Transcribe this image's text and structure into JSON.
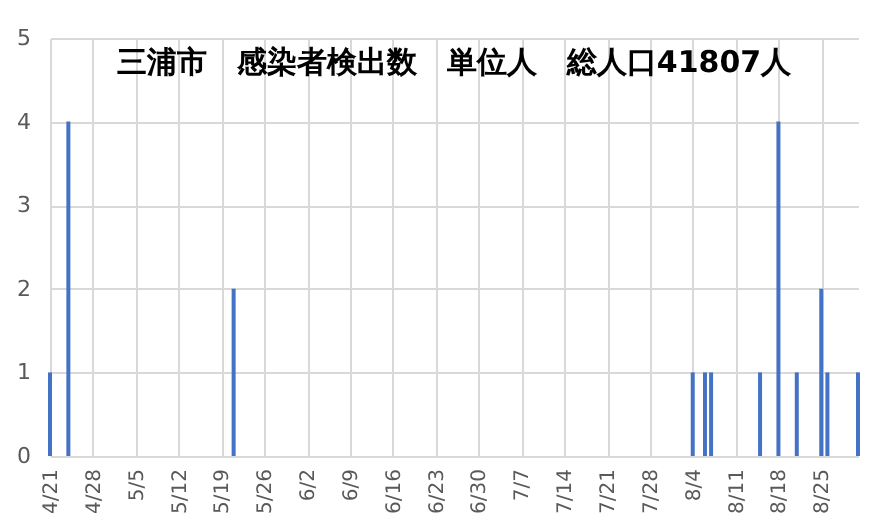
{
  "chart_data": {
    "type": "bar",
    "title": "三浦市　感染者検出数　単位人　総人口41807人",
    "x": [
      "--04-21",
      "--04-24",
      "--05-21",
      "--08-04",
      "--08-06",
      "--08-07",
      "--08-15",
      "--08-18",
      "--08-21",
      "--08-25",
      "--08-26",
      "--08-31"
    ],
    "values": [
      1,
      4,
      2,
      1,
      1,
      1,
      1,
      4,
      1,
      2,
      1,
      1
    ],
    "color": "#4472c4",
    "xlim": [
      "--04-21",
      "--08-31"
    ],
    "xticks": [
      {
        "value": "--04-21",
        "label": "4/21"
      },
      {
        "value": "--04-28",
        "label": "4/28"
      },
      {
        "value": "--05-05",
        "label": "5/5"
      },
      {
        "value": "--05-12",
        "label": "5/12"
      },
      {
        "value": "--05-19",
        "label": "5/19"
      },
      {
        "value": "--05-26",
        "label": "5/26"
      },
      {
        "value": "--06-02",
        "label": "6/2"
      },
      {
        "value": "--06-09",
        "label": "6/9"
      },
      {
        "value": "--06-16",
        "label": "6/16"
      },
      {
        "value": "--06-23",
        "label": "6/23"
      },
      {
        "value": "--06-30",
        "label": "6/30"
      },
      {
        "value": "--07-07",
        "label": "7/7"
      },
      {
        "value": "--07-14",
        "label": "7/14"
      },
      {
        "value": "--07-21",
        "label": "7/21"
      },
      {
        "value": "--07-28",
        "label": "7/28"
      },
      {
        "value": "--08-04",
        "label": "8/4"
      },
      {
        "value": "--08-11",
        "label": "8/11"
      },
      {
        "value": "--08-18",
        "label": "8/18"
      },
      {
        "value": "--08-25",
        "label": "8/25"
      }
    ],
    "ylim": [
      0,
      5
    ],
    "yticks": [
      0,
      1,
      2,
      3,
      4,
      5
    ],
    "grid": true
  }
}
